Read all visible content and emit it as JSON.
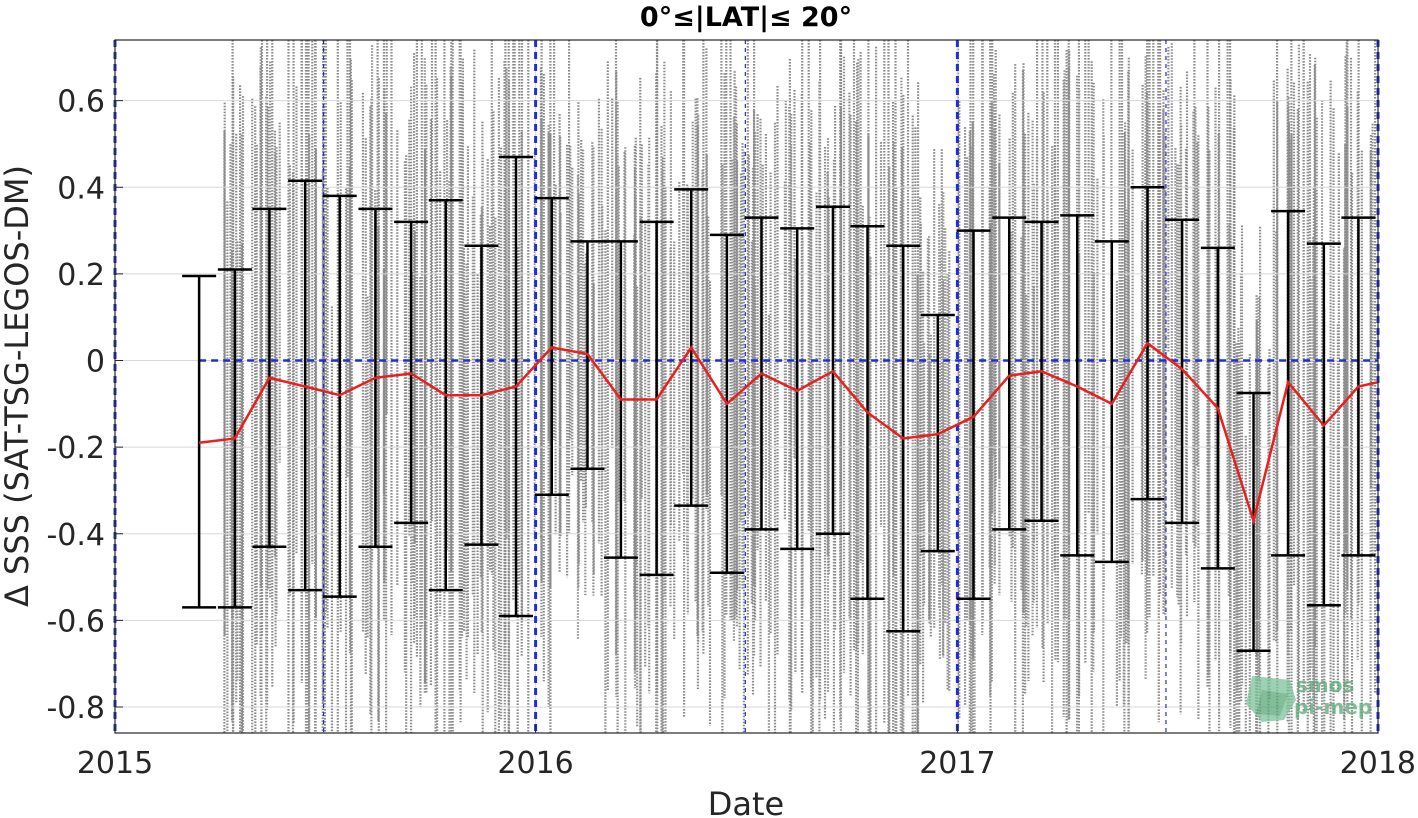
{
  "chart_data": {
    "type": "line",
    "title": "0°≤|LAT|≤ 20°",
    "xlabel": "Date",
    "ylabel": "Δ SSS (SAT-TSG-LEGOS-DM)",
    "xlim": [
      "2015-01-01",
      "2018-01-01"
    ],
    "ylim": [
      -0.86,
      0.74
    ],
    "x_ticks": [
      "2015",
      "2016",
      "2017",
      "2018"
    ],
    "y_ticks": [
      0.6,
      0.4,
      0.2,
      0,
      -0.2,
      -0.4,
      -0.6,
      -0.8
    ],
    "y_tick_labels": [
      "0.6",
      "0.4",
      "0.2",
      "0",
      "-0.2",
      "-0.4",
      "-0.6",
      "-0.8"
    ],
    "grid": true,
    "zero_line": 0,
    "year_boundaries": [
      "2015-01-01",
      "2016-01-01",
      "2017-01-01",
      "2018-01-01"
    ],
    "half_year_lines": [
      "2015-07-01",
      "2016-07-01",
      "2017-07-01"
    ],
    "colors": {
      "scatter": "#808080",
      "mean_line": "#e8211f",
      "error_bars": "#000000",
      "reference_lines": "#1f2fd6"
    },
    "series": [
      {
        "x": [
          "2015-03-15",
          "2015-04-15",
          "2015-05-15",
          "2015-06-15",
          "2015-07-15",
          "2015-08-15",
          "2015-09-15",
          "2015-10-15",
          "2015-11-15",
          "2015-12-15",
          "2016-01-15",
          "2016-02-15",
          "2016-03-15",
          "2016-04-15",
          "2016-05-15",
          "2016-06-15",
          "2016-07-15",
          "2016-08-15",
          "2016-09-15",
          "2016-10-15",
          "2016-11-15",
          "2016-12-15",
          "2017-01-15",
          "2017-02-15",
          "2017-03-15",
          "2017-04-15",
          "2017-05-15",
          "2017-06-15",
          "2017-07-15",
          "2017-08-15",
          "2017-09-15",
          "2017-10-15",
          "2017-11-15",
          "2017-12-15"
        ],
        "mean": [
          -0.19,
          -0.18,
          -0.04,
          -0.06,
          -0.08,
          -0.04,
          -0.03,
          -0.08,
          -0.08,
          -0.06,
          0.03,
          0.015,
          -0.09,
          -0.09,
          0.03,
          -0.1,
          -0.03,
          -0.07,
          -0.025,
          -0.12,
          -0.18,
          -0.17,
          -0.13,
          -0.035,
          -0.025,
          -0.06,
          -0.1,
          0.04,
          -0.02,
          -0.11,
          -0.37,
          -0.05,
          -0.15,
          -0.06
        ],
        "upper": [
          0.195,
          0.21,
          0.35,
          0.415,
          0.38,
          0.35,
          0.32,
          0.37,
          0.265,
          0.47,
          0.375,
          0.275,
          0.275,
          0.32,
          0.395,
          0.29,
          0.33,
          0.305,
          0.355,
          0.31,
          0.265,
          0.105,
          0.3,
          0.33,
          0.32,
          0.335,
          0.275,
          0.4,
          0.325,
          0.26,
          -0.075,
          0.345,
          0.27,
          0.33
        ],
        "lower": [
          -0.57,
          -0.57,
          -0.43,
          -0.53,
          -0.545,
          -0.43,
          -0.375,
          -0.53,
          -0.425,
          -0.59,
          -0.31,
          -0.25,
          -0.455,
          -0.495,
          -0.335,
          -0.49,
          -0.39,
          -0.435,
          -0.4,
          -0.55,
          -0.625,
          -0.44,
          -0.55,
          -0.39,
          -0.37,
          -0.45,
          -0.465,
          -0.32,
          -0.375,
          -0.48,
          -0.67,
          -0.45,
          -0.565,
          -0.45
        ]
      }
    ]
  },
  "watermark": {
    "lines": [
      "smos",
      "pi-mep"
    ],
    "color": "#5aa878"
  }
}
